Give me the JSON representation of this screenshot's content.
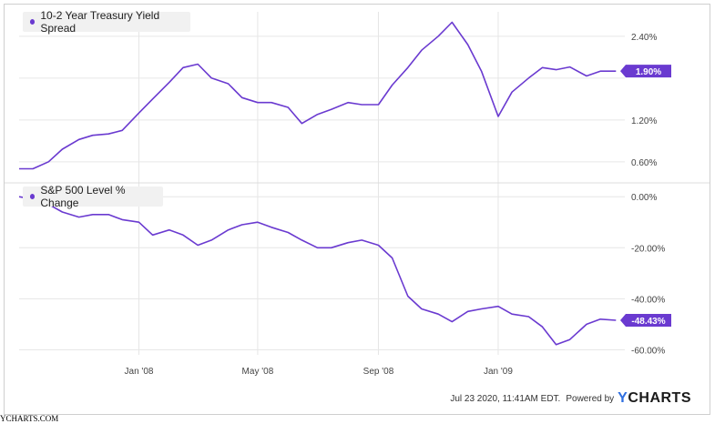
{
  "chart_data": [
    {
      "type": "line",
      "title": "10-2 Year Treasury Yield Spread",
      "y_unit": "%",
      "yticks": [
        0.6,
        1.2,
        1.8,
        2.4
      ],
      "ytick_labels": [
        "0.60%",
        "1.20%",
        "",
        "2.40%"
      ],
      "ylim": [
        0.35,
        2.75
      ],
      "last_value_label": "1.90%",
      "color": "#6a3ad0",
      "series": [
        {
          "x": [
            "2007-09-01",
            "2007-09-15",
            "2007-10-01",
            "2007-10-15",
            "2007-11-01",
            "2007-11-15",
            "2007-12-01",
            "2007-12-15",
            "2008-01-01",
            "2008-01-15",
            "2008-02-01",
            "2008-02-15",
            "2008-03-01",
            "2008-03-15",
            "2008-04-01",
            "2008-04-15",
            "2008-05-01",
            "2008-05-15",
            "2008-06-01",
            "2008-06-15",
            "2008-07-01",
            "2008-07-15",
            "2008-08-01",
            "2008-08-15",
            "2008-09-01",
            "2008-09-15",
            "2008-10-01",
            "2008-10-15",
            "2008-11-01",
            "2008-11-15",
            "2008-12-01",
            "2008-12-15",
            "2009-01-01",
            "2009-01-15",
            "2009-02-01",
            "2009-02-15",
            "2009-03-01",
            "2009-03-15",
            "2009-04-01",
            "2009-04-15",
            "2009-05-01"
          ],
          "y": [
            0.5,
            0.5,
            0.6,
            0.78,
            0.92,
            0.98,
            1.0,
            1.05,
            1.3,
            1.5,
            1.74,
            1.95,
            2.0,
            1.8,
            1.72,
            1.52,
            1.45,
            1.45,
            1.38,
            1.15,
            1.28,
            1.35,
            1.45,
            1.42,
            1.42,
            1.7,
            1.95,
            2.2,
            2.4,
            2.6,
            2.28,
            1.9,
            1.25,
            1.6,
            1.8,
            1.95,
            1.92,
            1.96,
            1.83,
            1.9,
            1.9
          ]
        }
      ]
    },
    {
      "type": "line",
      "title": "S&P 500 Level % Change",
      "y_unit": "%",
      "yticks": [
        0,
        -20,
        -40,
        -60
      ],
      "ytick_labels": [
        "0.00%",
        "-20.00%",
        "-40.00%",
        "-60.00%"
      ],
      "ylim": [
        -62,
        4
      ],
      "last_value_label": "-48.43%",
      "color": "#6a3ad0",
      "series": [
        {
          "x": [
            "2007-09-01",
            "2007-09-15",
            "2007-10-01",
            "2007-10-15",
            "2007-11-01",
            "2007-11-15",
            "2007-12-01",
            "2007-12-15",
            "2008-01-01",
            "2008-01-15",
            "2008-02-01",
            "2008-02-15",
            "2008-03-01",
            "2008-03-15",
            "2008-04-01",
            "2008-04-15",
            "2008-05-01",
            "2008-05-15",
            "2008-06-01",
            "2008-06-15",
            "2008-07-01",
            "2008-07-15",
            "2008-08-01",
            "2008-08-15",
            "2008-09-01",
            "2008-09-15",
            "2008-10-01",
            "2008-10-15",
            "2008-11-01",
            "2008-11-15",
            "2008-12-01",
            "2008-12-15",
            "2009-01-01",
            "2009-01-15",
            "2009-02-01",
            "2009-02-15",
            "2009-03-01",
            "2009-03-15",
            "2009-04-01",
            "2009-04-15",
            "2009-05-01"
          ],
          "y": [
            0,
            -1,
            -3,
            -6,
            -8,
            -7,
            -7,
            -9,
            -10,
            -15,
            -13,
            -15,
            -19,
            -17,
            -13,
            -11,
            -10,
            -12,
            -14,
            -17,
            -20,
            -20,
            -18,
            -17,
            -19,
            -24,
            -39,
            -44,
            -46,
            -49,
            -45,
            -44,
            -43,
            -46,
            -47,
            -51,
            -58,
            -56,
            -50,
            -48,
            -48.43
          ]
        }
      ]
    }
  ],
  "x_axis": {
    "ticks": [
      "2008-01-01",
      "2008-05-01",
      "2008-09-01",
      "2009-01-01"
    ],
    "tick_labels": [
      "Jan '08",
      "May '08",
      "Sep '08",
      "Jan '09"
    ],
    "range": [
      "2007-09-01",
      "2009-05-10"
    ]
  },
  "legend": {
    "top_label": "10-2 Year Treasury Yield Spread",
    "bottom_label": "S&P 500 Level % Change"
  },
  "footer": {
    "timestamp": "Jul 23 2020, 11:41AM EDT.",
    "powered_by": "Powered by",
    "brand": "YCHARTS"
  },
  "watermark": "YCHARTS.COM",
  "colors": {
    "series": "#6a3ad0",
    "grid": "#e6e6e6",
    "axis_text": "#444444"
  }
}
